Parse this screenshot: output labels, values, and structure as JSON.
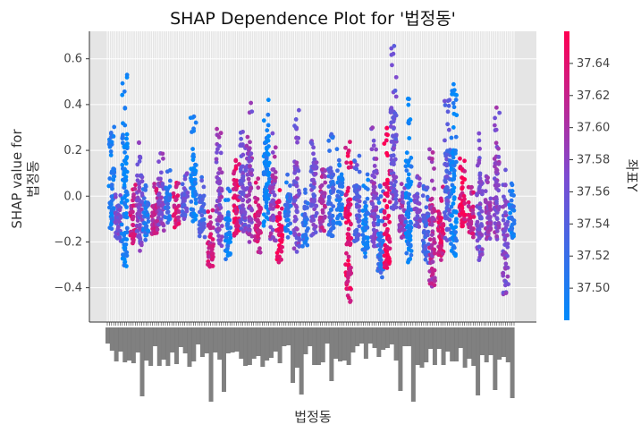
{
  "chart_data": {
    "type": "scatter",
    "title": "SHAP Dependence Plot for '법정동'",
    "xlabel": "법정동",
    "ylabel_line1": "SHAP value for",
    "ylabel_line2": "법정동",
    "ylim": [
      -0.55,
      0.72
    ],
    "yticks": [
      -0.4,
      -0.2,
      0.0,
      0.2,
      0.4,
      0.6
    ],
    "ytick_labels": [
      "−0.4",
      "−0.2",
      "0.0",
      "0.2",
      "0.4",
      "0.6"
    ],
    "grid": true,
    "x_tick_labels": "unreadable (dense overlapping Korean district names)",
    "n_categories": 190,
    "colorbar": {
      "label": "좌표Y",
      "range": [
        37.48,
        37.66
      ],
      "ticks": [
        37.5,
        37.52,
        37.54,
        37.56,
        37.58,
        37.6,
        37.62,
        37.64
      ],
      "tick_labels": [
        "37.50",
        "37.52",
        "37.54",
        "37.56",
        "37.58",
        "37.60",
        "37.62",
        "37.64"
      ],
      "colors": [
        "#008afb",
        "#7d4bd1",
        "#ff0052"
      ]
    },
    "clusters": [
      {
        "x": 2,
        "ymin": -0.15,
        "ymax": 0.32,
        "c": 0.1
      },
      {
        "x": 5,
        "ymin": -0.2,
        "ymax": 0.02,
        "c": 0.45
      },
      {
        "x": 8,
        "ymin": -0.32,
        "ymax": 0.54,
        "c": 0.05
      },
      {
        "x": 12,
        "ymin": -0.22,
        "ymax": 0.06,
        "c": 0.8
      },
      {
        "x": 15,
        "ymin": -0.25,
        "ymax": 0.24,
        "c": 0.5
      },
      {
        "x": 18,
        "ymin": -0.2,
        "ymax": 0.1,
        "c": 0.15
      },
      {
        "x": 22,
        "ymin": -0.18,
        "ymax": 0.06,
        "c": 0.75
      },
      {
        "x": 25,
        "ymin": -0.15,
        "ymax": 0.2,
        "c": 0.55
      },
      {
        "x": 28,
        "ymin": -0.12,
        "ymax": 0.12,
        "c": 0.2
      },
      {
        "x": 32,
        "ymin": -0.14,
        "ymax": 0.08,
        "c": 0.85
      },
      {
        "x": 36,
        "ymin": -0.1,
        "ymax": 0.1,
        "c": 0.4
      },
      {
        "x": 40,
        "ymin": -0.12,
        "ymax": 0.35,
        "c": 0.05
      },
      {
        "x": 44,
        "ymin": -0.18,
        "ymax": 0.1,
        "c": 0.3
      },
      {
        "x": 48,
        "ymin": -0.32,
        "ymax": -0.02,
        "c": 0.8
      },
      {
        "x": 52,
        "ymin": -0.25,
        "ymax": 0.3,
        "c": 0.55
      },
      {
        "x": 56,
        "ymin": -0.28,
        "ymax": 0.05,
        "c": 0.1
      },
      {
        "x": 60,
        "ymin": -0.2,
        "ymax": 0.22,
        "c": 0.9
      },
      {
        "x": 63,
        "ymin": -0.18,
        "ymax": 0.3,
        "c": 0.45
      },
      {
        "x": 66,
        "ymin": -0.22,
        "ymax": 0.43,
        "c": 0.55
      },
      {
        "x": 70,
        "ymin": -0.25,
        "ymax": 0.1,
        "c": 0.8
      },
      {
        "x": 74,
        "ymin": -0.15,
        "ymax": 0.5,
        "c": 0.05
      },
      {
        "x": 77,
        "ymin": -0.22,
        "ymax": 0.3,
        "c": 0.6
      },
      {
        "x": 80,
        "ymin": -0.3,
        "ymax": 0.05,
        "c": 0.95
      },
      {
        "x": 84,
        "ymin": -0.18,
        "ymax": 0.1,
        "c": 0.15
      },
      {
        "x": 88,
        "ymin": -0.25,
        "ymax": 0.38,
        "c": 0.5
      },
      {
        "x": 92,
        "ymin": -0.22,
        "ymax": 0.05,
        "c": 0.2
      },
      {
        "x": 96,
        "ymin": -0.2,
        "ymax": 0.34,
        "c": 0.45
      },
      {
        "x": 100,
        "ymin": -0.18,
        "ymax": 0.12,
        "c": 0.7
      },
      {
        "x": 104,
        "ymin": -0.2,
        "ymax": 0.3,
        "c": 0.25
      },
      {
        "x": 108,
        "ymin": -0.15,
        "ymax": 0.22,
        "c": 0.15
      },
      {
        "x": 112,
        "ymin": -0.5,
        "ymax": 0.25,
        "c": 0.9
      },
      {
        "x": 116,
        "ymin": -0.22,
        "ymax": 0.2,
        "c": 0.35
      },
      {
        "x": 120,
        "ymin": -0.28,
        "ymax": 0.1,
        "c": 0.1
      },
      {
        "x": 124,
        "ymin": -0.25,
        "ymax": 0.35,
        "c": 0.55
      },
      {
        "x": 127,
        "ymin": -0.36,
        "ymax": 0.05,
        "c": 0.2
      },
      {
        "x": 130,
        "ymin": -0.35,
        "ymax": 0.3,
        "c": 0.95
      },
      {
        "x": 133,
        "ymin": -0.1,
        "ymax": 0.66,
        "c": 0.45
      },
      {
        "x": 137,
        "ymin": -0.2,
        "ymax": 0.1,
        "c": 0.6
      },
      {
        "x": 140,
        "ymin": -0.34,
        "ymax": 0.48,
        "c": 0.05
      },
      {
        "x": 144,
        "ymin": -0.15,
        "ymax": 0.1,
        "c": 0.5
      },
      {
        "x": 148,
        "ymin": -0.3,
        "ymax": 0.05,
        "c": 0.3
      },
      {
        "x": 151,
        "ymin": -0.43,
        "ymax": 0.22,
        "c": 0.7
      },
      {
        "x": 155,
        "ymin": -0.28,
        "ymax": 0.05,
        "c": 0.85
      },
      {
        "x": 158,
        "ymin": -0.2,
        "ymax": 0.42,
        "c": 0.35
      },
      {
        "x": 161,
        "ymin": -0.3,
        "ymax": 0.49,
        "c": 0.05
      },
      {
        "x": 165,
        "ymin": -0.15,
        "ymax": 0.2,
        "c": 0.9
      },
      {
        "x": 169,
        "ymin": -0.18,
        "ymax": 0.05,
        "c": 0.8
      },
      {
        "x": 173,
        "ymin": -0.3,
        "ymax": 0.28,
        "c": 0.45
      },
      {
        "x": 177,
        "ymin": -0.2,
        "ymax": 0.1,
        "c": 0.6
      },
      {
        "x": 181,
        "ymin": -0.22,
        "ymax": 0.39,
        "c": 0.55
      },
      {
        "x": 185,
        "ymin": -0.46,
        "ymax": 0.12,
        "c": 0.5
      },
      {
        "x": 188,
        "ymin": -0.2,
        "ymax": 0.06,
        "c": 0.1
      }
    ]
  }
}
